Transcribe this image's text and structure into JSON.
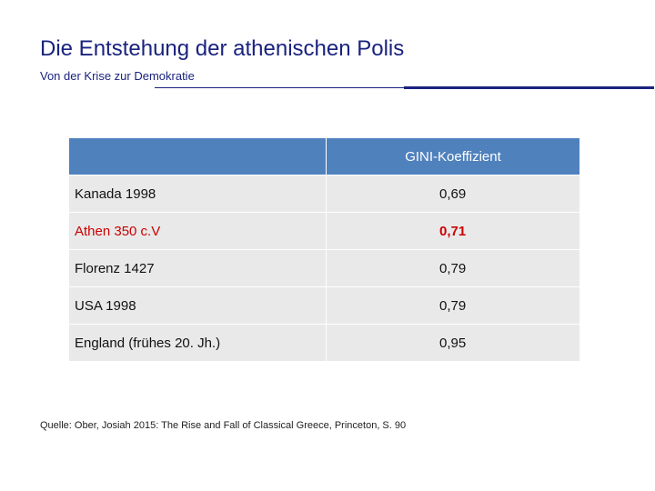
{
  "slide": {
    "title": "Die Entstehung der athenischen Polis",
    "subtitle": "Von der Krise zur Demokratie"
  },
  "table": {
    "header": [
      "",
      "GINI-Koeffizient"
    ],
    "rows": [
      {
        "label": "Kanada 1998",
        "value": "0,69"
      },
      {
        "label": "Athen 350 c.V",
        "value": "0,71"
      },
      {
        "label": "Florenz 1427",
        "value": "0,79"
      },
      {
        "label": "USA 1998",
        "value": "0,79"
      },
      {
        "label": "England (frühes 20. Jh.)",
        "value": "0,95"
      }
    ],
    "highlight_color": "#cc0000"
  },
  "source": "Quelle: Ober, Josiah 2015: The Rise and Fall of Classical Greece, Princeton, S. 90"
}
